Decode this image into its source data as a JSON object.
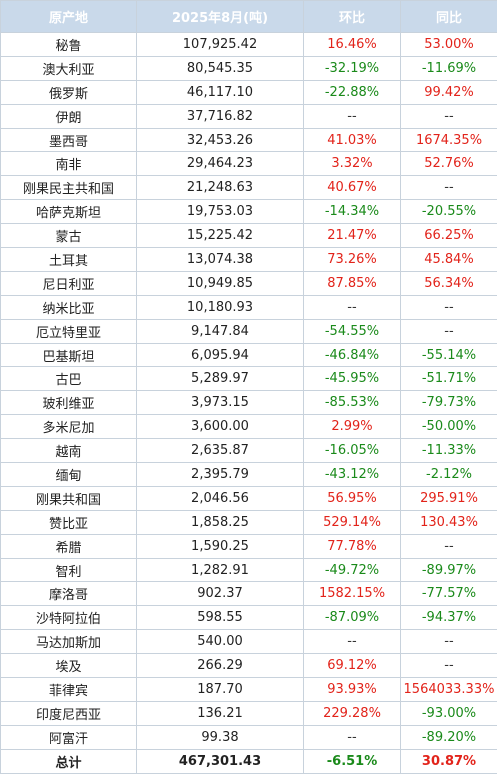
{
  "colors": {
    "header_bg": "#c9d9ea",
    "up": "#e2231a",
    "down": "#1a8a1a",
    "border": "#c8d2dc"
  },
  "headers": [
    "原产地",
    "2025年8月(吨)",
    "环比",
    "同比"
  ],
  "rows": [
    {
      "origin": "秘鲁",
      "volume": "107,925.42",
      "mom": "16.46%",
      "mom_dir": "up",
      "yoy": "53.00%",
      "yoy_dir": "up"
    },
    {
      "origin": "澳大利亚",
      "volume": "80,545.35",
      "mom": "-32.19%",
      "mom_dir": "down",
      "yoy": "-11.69%",
      "yoy_dir": "down"
    },
    {
      "origin": "俄罗斯",
      "volume": "46,117.10",
      "mom": "-22.88%",
      "mom_dir": "down",
      "yoy": "99.42%",
      "yoy_dir": "up"
    },
    {
      "origin": "伊朗",
      "volume": "37,716.82",
      "mom": "--",
      "mom_dir": "none",
      "yoy": "--",
      "yoy_dir": "none"
    },
    {
      "origin": "墨西哥",
      "volume": "32,453.26",
      "mom": "41.03%",
      "mom_dir": "up",
      "yoy": "1674.35%",
      "yoy_dir": "up"
    },
    {
      "origin": "南非",
      "volume": "29,464.23",
      "mom": "3.32%",
      "mom_dir": "up",
      "yoy": "52.76%",
      "yoy_dir": "up"
    },
    {
      "origin": "刚果民主共和国",
      "volume": "21,248.63",
      "mom": "40.67%",
      "mom_dir": "up",
      "yoy": "--",
      "yoy_dir": "none"
    },
    {
      "origin": "哈萨克斯坦",
      "volume": "19,753.03",
      "mom": "-14.34%",
      "mom_dir": "down",
      "yoy": "-20.55%",
      "yoy_dir": "down"
    },
    {
      "origin": "蒙古",
      "volume": "15,225.42",
      "mom": "21.47%",
      "mom_dir": "up",
      "yoy": "66.25%",
      "yoy_dir": "up"
    },
    {
      "origin": "土耳其",
      "volume": "13,074.38",
      "mom": "73.26%",
      "mom_dir": "up",
      "yoy": "45.84%",
      "yoy_dir": "up"
    },
    {
      "origin": "尼日利亚",
      "volume": "10,949.85",
      "mom": "87.85%",
      "mom_dir": "up",
      "yoy": "56.34%",
      "yoy_dir": "up"
    },
    {
      "origin": "纳米比亚",
      "volume": "10,180.93",
      "mom": "--",
      "mom_dir": "none",
      "yoy": "--",
      "yoy_dir": "none"
    },
    {
      "origin": "厄立特里亚",
      "volume": "9,147.84",
      "mom": "-54.55%",
      "mom_dir": "down",
      "yoy": "--",
      "yoy_dir": "none"
    },
    {
      "origin": "巴基斯坦",
      "volume": "6,095.94",
      "mom": "-46.84%",
      "mom_dir": "down",
      "yoy": "-55.14%",
      "yoy_dir": "down"
    },
    {
      "origin": "古巴",
      "volume": "5,289.97",
      "mom": "-45.95%",
      "mom_dir": "down",
      "yoy": "-51.71%",
      "yoy_dir": "down"
    },
    {
      "origin": "玻利维亚",
      "volume": "3,973.15",
      "mom": "-85.53%",
      "mom_dir": "down",
      "yoy": "-79.73%",
      "yoy_dir": "down"
    },
    {
      "origin": "多米尼加",
      "volume": "3,600.00",
      "mom": "2.99%",
      "mom_dir": "up",
      "yoy": "-50.00%",
      "yoy_dir": "down"
    },
    {
      "origin": "越南",
      "volume": "2,635.87",
      "mom": "-16.05%",
      "mom_dir": "down",
      "yoy": "-11.33%",
      "yoy_dir": "down"
    },
    {
      "origin": "缅甸",
      "volume": "2,395.79",
      "mom": "-43.12%",
      "mom_dir": "down",
      "yoy": "-2.12%",
      "yoy_dir": "down"
    },
    {
      "origin": "刚果共和国",
      "volume": "2,046.56",
      "mom": "56.95%",
      "mom_dir": "up",
      "yoy": "295.91%",
      "yoy_dir": "up"
    },
    {
      "origin": "赞比亚",
      "volume": "1,858.25",
      "mom": "529.14%",
      "mom_dir": "up",
      "yoy": "130.43%",
      "yoy_dir": "up"
    },
    {
      "origin": "希腊",
      "volume": "1,590.25",
      "mom": "77.78%",
      "mom_dir": "up",
      "yoy": "--",
      "yoy_dir": "none"
    },
    {
      "origin": "智利",
      "volume": "1,282.91",
      "mom": "-49.72%",
      "mom_dir": "down",
      "yoy": "-89.97%",
      "yoy_dir": "down"
    },
    {
      "origin": "摩洛哥",
      "volume": "902.37",
      "mom": "1582.15%",
      "mom_dir": "up",
      "yoy": "-77.57%",
      "yoy_dir": "down"
    },
    {
      "origin": "沙特阿拉伯",
      "volume": "598.55",
      "mom": "-87.09%",
      "mom_dir": "down",
      "yoy": "-94.37%",
      "yoy_dir": "down"
    },
    {
      "origin": "马达加斯加",
      "volume": "540.00",
      "mom": "--",
      "mom_dir": "none",
      "yoy": "--",
      "yoy_dir": "none"
    },
    {
      "origin": "埃及",
      "volume": "266.29",
      "mom": "69.12%",
      "mom_dir": "up",
      "yoy": "--",
      "yoy_dir": "none"
    },
    {
      "origin": "菲律宾",
      "volume": "187.70",
      "mom": "93.93%",
      "mom_dir": "up",
      "yoy": "1564033.33%",
      "yoy_dir": "up"
    },
    {
      "origin": "印度尼西亚",
      "volume": "136.21",
      "mom": "229.28%",
      "mom_dir": "up",
      "yoy": "-93.00%",
      "yoy_dir": "down"
    },
    {
      "origin": "阿富汗",
      "volume": "99.38",
      "mom": "--",
      "mom_dir": "none",
      "yoy": "-89.20%",
      "yoy_dir": "down"
    }
  ],
  "total": {
    "label": "总计",
    "volume": "467,301.43",
    "mom": "-6.51%",
    "mom_dir": "down",
    "yoy": "30.87%",
    "yoy_dir": "up"
  }
}
